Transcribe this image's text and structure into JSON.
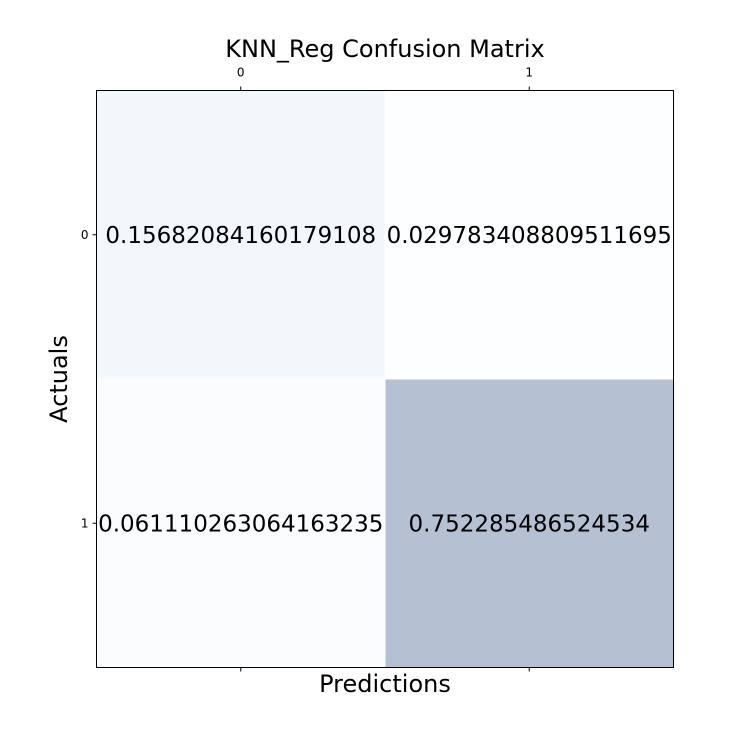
{
  "chart_data": {
    "type": "heatmap",
    "title": "KNN_Reg Confusion Matrix",
    "xlabel": "Predictions",
    "ylabel": "Actuals",
    "x_ticks": [
      "0",
      "1"
    ],
    "y_ticks": [
      "0",
      "1"
    ],
    "x_tick_position": "top",
    "matrix": [
      [
        0.15682084160179108,
        0.029783408809511695
      ],
      [
        0.061110263064163235,
        0.752285486524534
      ]
    ],
    "cell_labels": [
      [
        "0.15682084160179108",
        "0.029783408809511695"
      ],
      [
        "0.061110263064163235",
        "0.752285486524534"
      ]
    ],
    "colormap": "Blues",
    "alpha": 0.3,
    "grid": false
  }
}
